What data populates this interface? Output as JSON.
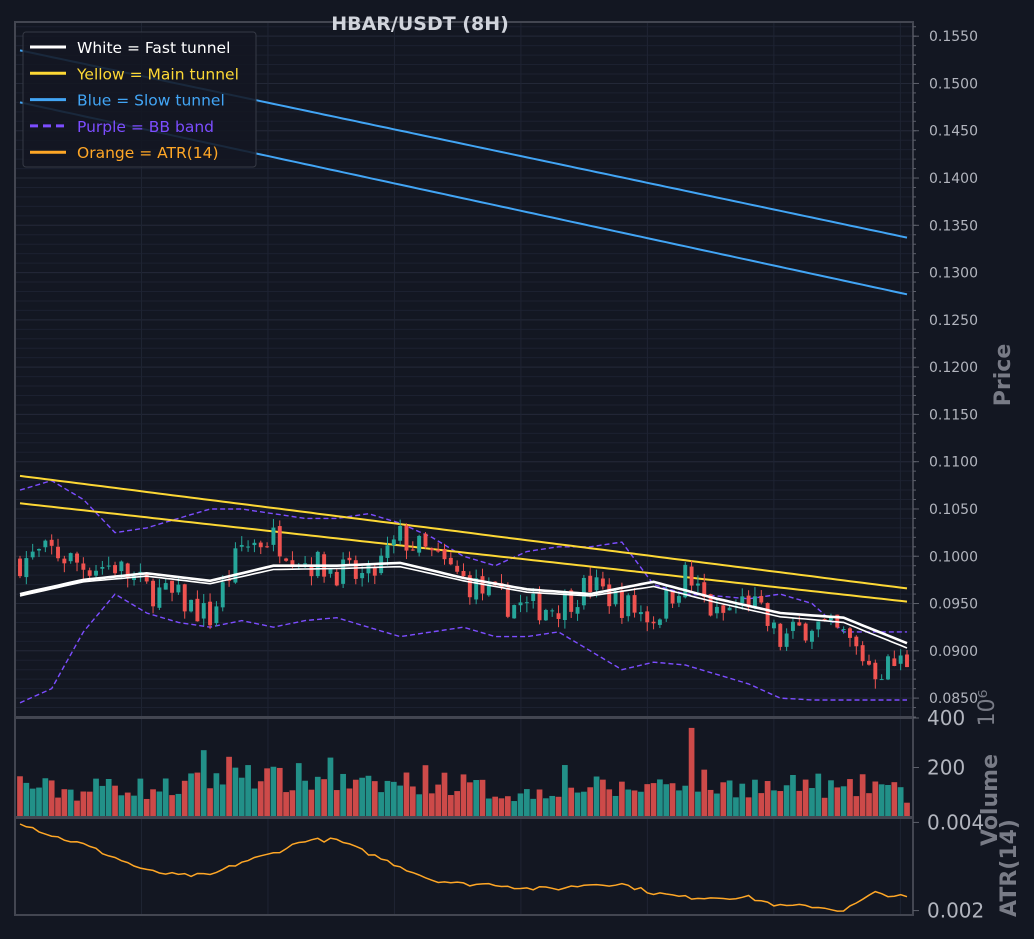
{
  "chart_data": {
    "type": "candlestick",
    "title": "HBAR/USDT (8H)",
    "legend": {
      "placement": "top-left",
      "entries": [
        {
          "label": "White = Fast tunnel",
          "color": "#ffffff",
          "style": "solid"
        },
        {
          "label": "Yellow = Main tunnel",
          "color": "#fdd835",
          "style": "solid"
        },
        {
          "label": "Blue = Slow tunnel",
          "color": "#42a5f5",
          "style": "solid"
        },
        {
          "label": "Purple = BB band",
          "color": "#7c4dff",
          "style": "dashed"
        },
        {
          "label": "Orange = ATR(14)",
          "color": "#ffa726",
          "style": "solid"
        }
      ]
    },
    "colors": {
      "background": "#131722",
      "up": "#26a69a",
      "down": "#ef5350",
      "fast": "#ffffff",
      "main": "#fdd835",
      "slow": "#42a5f5",
      "bb": "#7c4dff",
      "atr": "#ffa726",
      "grid": "#2a2e39",
      "axis_text": "#b2b5be",
      "axis_label": "#787b86"
    },
    "panels": {
      "price": {
        "ylabel": "Price",
        "ylim": [
          0.083,
          0.1565
        ],
        "ticks": [
          "0.0850",
          "0.0900",
          "0.0950",
          "0.1000",
          "0.1050",
          "0.1100",
          "0.1150",
          "0.1200",
          "0.1250",
          "0.1300",
          "0.1350",
          "0.1400",
          "0.1450",
          "0.1500",
          "0.1550"
        ],
        "grid": true
      },
      "volume": {
        "ylabel": "Volume",
        "scale_label": "10⁶",
        "ylim": [
          0,
          400
        ],
        "ticks": [
          "200",
          "400"
        ]
      },
      "atr": {
        "ylabel": "ATR(14)",
        "ylim": [
          0.0019,
          0.0041
        ],
        "ticks": [
          "0.002",
          "0.004"
        ]
      }
    },
    "fast_tunnel": {
      "knots_x": [
        0,
        10,
        20,
        30,
        40,
        50,
        60,
        70,
        80,
        90,
        100,
        110,
        120,
        130,
        140
      ],
      "upper": [
        0.096,
        0.0975,
        0.0982,
        0.0974,
        0.099,
        0.099,
        0.0993,
        0.0977,
        0.0965,
        0.096,
        0.0973,
        0.0955,
        0.094,
        0.0935,
        0.0908
      ],
      "lower": [
        0.0958,
        0.0973,
        0.0979,
        0.0971,
        0.0986,
        0.0987,
        0.0989,
        0.0974,
        0.0962,
        0.0958,
        0.0968,
        0.0951,
        0.0936,
        0.093,
        0.0903
      ]
    },
    "main_tunnel": {
      "knots_x": [
        0,
        140
      ],
      "upper": [
        0.1085,
        0.0966
      ],
      "lower": [
        0.1056,
        0.0952
      ]
    },
    "slow_tunnel": {
      "knots_x": [
        0,
        140
      ],
      "upper": [
        0.1535,
        0.1337
      ],
      "lower": [
        0.148,
        0.1277
      ]
    },
    "bb_band": {
      "knots_x": [
        0,
        5,
        10,
        15,
        20,
        25,
        30,
        35,
        40,
        45,
        50,
        55,
        60,
        65,
        70,
        75,
        80,
        85,
        90,
        95,
        100,
        105,
        110,
        115,
        120,
        125,
        130,
        135,
        140
      ],
      "upper": [
        0.107,
        0.108,
        0.106,
        0.1025,
        0.103,
        0.104,
        0.105,
        0.105,
        0.1045,
        0.104,
        0.104,
        0.1045,
        0.1035,
        0.102,
        0.1,
        0.099,
        0.1005,
        0.101,
        0.101,
        0.1015,
        0.097,
        0.096,
        0.0958,
        0.0955,
        0.096,
        0.095,
        0.092,
        0.092,
        0.092
      ],
      "lower": [
        0.0845,
        0.086,
        0.092,
        0.096,
        0.094,
        0.093,
        0.0925,
        0.0932,
        0.0925,
        0.0932,
        0.0935,
        0.0925,
        0.0915,
        0.092,
        0.0925,
        0.0915,
        0.0915,
        0.092,
        0.09,
        0.088,
        0.0888,
        0.0885,
        0.0875,
        0.0865,
        0.085,
        0.0848,
        0.0848,
        0.0848,
        0.0848
      ]
    },
    "candles": {
      "count": 141,
      "x_range": [
        0,
        140
      ],
      "close_anchor_x": [
        0,
        5,
        10,
        15,
        20,
        25,
        30,
        35,
        40,
        45,
        50,
        55,
        60,
        65,
        70,
        75,
        80,
        85,
        90,
        95,
        100,
        105,
        110,
        115,
        120,
        125,
        130,
        135,
        140
      ],
      "close_anchor": [
        0.0995,
        0.1005,
        0.099,
        0.099,
        0.0965,
        0.0955,
        0.0935,
        0.101,
        0.102,
        0.0995,
        0.0985,
        0.0975,
        0.102,
        0.1,
        0.0975,
        0.0955,
        0.0945,
        0.0948,
        0.097,
        0.095,
        0.0935,
        0.098,
        0.0935,
        0.0955,
        0.091,
        0.093,
        0.0915,
        0.088,
        0.089
      ],
      "volume_anchor": [
        150,
        120,
        110,
        150,
        120,
        130,
        160,
        230,
        160,
        170,
        150,
        130,
        150,
        170,
        140,
        110,
        100,
        140,
        130,
        120,
        140,
        180,
        130,
        140,
        120,
        150,
        110,
        150,
        90
      ],
      "atr_anchor_x": [
        0,
        5,
        10,
        15,
        20,
        25,
        30,
        35,
        40,
        45,
        50,
        55,
        60,
        65,
        70,
        75,
        80,
        85,
        90,
        95,
        100,
        105,
        110,
        115,
        120,
        125,
        130,
        135,
        140
      ],
      "atr_anchor": [
        0.004,
        0.0037,
        0.0035,
        0.0032,
        0.0029,
        0.0028,
        0.0028,
        0.0031,
        0.0033,
        0.0036,
        0.0036,
        0.0033,
        0.003,
        0.0027,
        0.0026,
        0.0026,
        0.0025,
        0.0025,
        0.0026,
        0.0026,
        0.0024,
        0.0023,
        0.0023,
        0.0023,
        0.0021,
        0.0021,
        0.002,
        0.0024,
        0.0023
      ]
    }
  }
}
